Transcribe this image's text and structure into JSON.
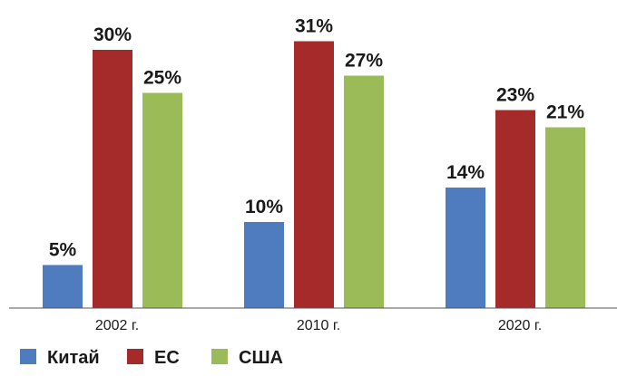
{
  "chart_data": {
    "type": "bar",
    "categories": [
      "2002 г.",
      "2010 г.",
      "2020 г."
    ],
    "series": [
      {
        "name": "Китай",
        "values": [
          5,
          10,
          14
        ],
        "labels": [
          "5%",
          "10%",
          "14%"
        ],
        "color": "#4f7bbf"
      },
      {
        "name": "ЕС",
        "values": [
          30,
          31,
          23
        ],
        "labels": [
          "30%",
          "31%",
          "23%"
        ],
        "color": "#a52a2a"
      },
      {
        "name": "США",
        "values": [
          25,
          27,
          21
        ],
        "labels": [
          "25%",
          "27%",
          "21%"
        ],
        "color": "#9bbb59"
      }
    ],
    "ylim": [
      0,
      32
    ],
    "grid": false,
    "legend": "bottom-left"
  }
}
